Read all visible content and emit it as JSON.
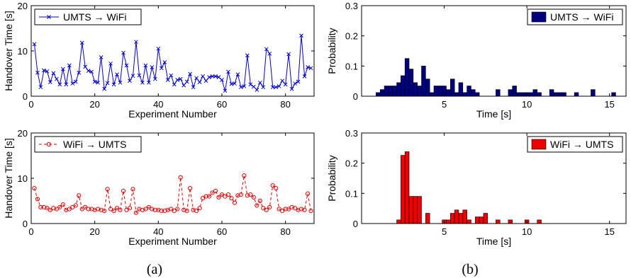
{
  "captions": [
    "(a)",
    "(b)"
  ],
  "chart_data": [
    {
      "type": "line",
      "legend": "UMTS → WiFi",
      "legend_position": "top-left",
      "xlabel": "Experiment Number",
      "ylabel": "Handover Time [s]",
      "xlim": [
        0,
        89
      ],
      "ylim": [
        0,
        20
      ],
      "xticks": [
        "0",
        "20",
        "40",
        "60",
        "80"
      ],
      "yticks": [
        "0",
        "10",
        "20"
      ],
      "marker": "x",
      "color": "#0000cc",
      "grid": false,
      "x": [
        1,
        2,
        3,
        4,
        5,
        6,
        7,
        8,
        9,
        10,
        11,
        12,
        13,
        14,
        15,
        16,
        17,
        18,
        19,
        20,
        21,
        22,
        23,
        24,
        25,
        26,
        27,
        28,
        29,
        30,
        31,
        32,
        33,
        34,
        35,
        36,
        37,
        38,
        39,
        40,
        41,
        42,
        43,
        44,
        45,
        46,
        47,
        48,
        49,
        50,
        51,
        52,
        53,
        54,
        55,
        56,
        57,
        58,
        59,
        60,
        61,
        62,
        63,
        64,
        65,
        66,
        67,
        68,
        69,
        70,
        71,
        72,
        73,
        74,
        75,
        76,
        77,
        78,
        79,
        80,
        81,
        82,
        83,
        84,
        85,
        86,
        87,
        88
      ],
      "y": [
        11.5,
        5.2,
        2.0,
        5.7,
        5.5,
        3.1,
        5.1,
        3.8,
        2.6,
        6.0,
        2.6,
        6.8,
        2.8,
        3.2,
        5.2,
        11.8,
        6.5,
        5.6,
        5.4,
        3.2,
        3.0,
        8.6,
        1.6,
        2.9,
        7.2,
        2.6,
        4.8,
        3.0,
        9.6,
        6.8,
        3.4,
        4.5,
        12.0,
        4.6,
        3.0,
        6.8,
        3.0,
        6.4,
        3.8,
        10.5,
        6.2,
        7.5,
        3.6,
        4.6,
        2.6,
        3.6,
        3.8,
        2.4,
        3.2,
        4.9,
        2.0,
        4.0,
        3.1,
        4.4,
        3.4,
        4.2,
        4.4,
        4.4,
        4.2,
        3.6,
        1.2,
        5.4,
        2.7,
        2.8,
        4.8,
        2.0,
        2.2,
        9.0,
        2.6,
        2.1,
        1.4,
        3.0,
        2.0,
        10.4,
        9.4,
        2.0,
        2.0,
        2.2,
        3.4,
        2.6,
        9.3,
        1.6,
        2.8,
        3.2,
        13.4,
        4.4,
        6.4,
        6.2
      ]
    },
    {
      "type": "bar",
      "legend": "UMTS → WiFi",
      "legend_position": "top-right",
      "xlabel": "Time [s]",
      "ylabel": "Probability",
      "xlim": [
        0,
        16
      ],
      "ylim": [
        0,
        0.3
      ],
      "xticks": [
        "5",
        "10",
        "15"
      ],
      "yticks": [
        "0",
        "0.1",
        "0.2",
        "0.3"
      ],
      "color": "#00007f",
      "grid": false,
      "x": [
        1.0,
        1.25,
        1.5,
        1.75,
        2.0,
        2.25,
        2.5,
        2.75,
        3.0,
        3.25,
        3.5,
        3.75,
        4.0,
        4.25,
        4.5,
        4.75,
        5.0,
        5.25,
        5.5,
        5.75,
        6.0,
        6.25,
        6.5,
        6.75,
        7.0,
        8.25,
        9.0,
        9.25,
        9.5,
        9.75,
        10.0,
        10.25,
        10.5,
        10.75,
        11.5,
        11.75,
        12.0,
        12.25,
        13.0,
        14.0,
        15.25
      ],
      "values": [
        0.012,
        0.022,
        0.034,
        0.034,
        0.034,
        0.045,
        0.068,
        0.125,
        0.09,
        0.045,
        0.034,
        0.1,
        0.057,
        0.012,
        0.034,
        0.034,
        0.034,
        0.022,
        0.057,
        0.012,
        0.045,
        0.012,
        0.034,
        0.022,
        0.012,
        0.022,
        0.022,
        0.034,
        0.012,
        0.012,
        0.012,
        0.012,
        0.022,
        0.012,
        0.022,
        0.012,
        0.012,
        0.012,
        0.012,
        0.022,
        0.012
      ],
      "bar_width": 0.25
    },
    {
      "type": "line",
      "legend": "WiFi → UMTS",
      "legend_position": "top-left",
      "xlabel": "Experiment Number",
      "ylabel": "Handover Time [s]",
      "xlim": [
        0,
        89
      ],
      "ylim": [
        0,
        20
      ],
      "xticks": [
        "0",
        "20",
        "40",
        "60",
        "80"
      ],
      "yticks": [
        "0",
        "10",
        "20"
      ],
      "marker": "o",
      "line_style": "dashed",
      "color": "#dd0000",
      "grid": false,
      "x": [
        1,
        2,
        3,
        4,
        5,
        6,
        7,
        8,
        9,
        10,
        11,
        12,
        13,
        14,
        15,
        16,
        17,
        18,
        19,
        20,
        21,
        22,
        23,
        24,
        25,
        26,
        27,
        28,
        29,
        30,
        31,
        32,
        33,
        34,
        35,
        36,
        37,
        38,
        39,
        40,
        41,
        42,
        43,
        44,
        45,
        46,
        47,
        48,
        49,
        50,
        51,
        52,
        53,
        54,
        55,
        56,
        57,
        58,
        59,
        60,
        61,
        62,
        63,
        64,
        65,
        66,
        67,
        68,
        69,
        70,
        71,
        72,
        73,
        74,
        75,
        76,
        77,
        78,
        79,
        80,
        81,
        82,
        83,
        84,
        85,
        86,
        87,
        88
      ],
      "y": [
        7.8,
        5.4,
        3.6,
        3.6,
        3.4,
        3.0,
        3.4,
        3.2,
        3.6,
        4.2,
        3.0,
        3.2,
        3.6,
        4.0,
        6.2,
        3.2,
        3.6,
        3.2,
        3.2,
        3.0,
        3.2,
        3.0,
        2.8,
        7.6,
        3.2,
        2.8,
        3.4,
        3.0,
        7.2,
        3.0,
        3.4,
        7.6,
        2.4,
        3.2,
        3.0,
        3.2,
        3.6,
        3.2,
        3.0,
        3.0,
        2.8,
        2.8,
        3.0,
        3.2,
        2.8,
        3.2,
        10.2,
        3.0,
        2.8,
        7.8,
        3.0,
        2.8,
        3.4,
        5.6,
        6.0,
        6.0,
        6.8,
        7.2,
        5.8,
        6.4,
        6.0,
        6.4,
        5.6,
        4.6,
        6.2,
        6.4,
        10.6,
        6.2,
        6.4,
        5.8,
        4.0,
        5.0,
        3.4,
        3.0,
        3.6,
        8.4,
        7.8,
        3.2,
        2.8,
        3.2,
        3.2,
        3.6,
        3.4,
        3.0,
        3.2,
        3.0,
        6.6,
        2.8
      ]
    },
    {
      "type": "bar",
      "legend": "WiFi → UMTS",
      "legend_position": "top-right",
      "xlabel": "Time [s]",
      "ylabel": "Probability",
      "xlim": [
        0,
        16
      ],
      "ylim": [
        0,
        0.3
      ],
      "xticks": [
        "5",
        "10",
        "15"
      ],
      "yticks": [
        "0",
        "0.1",
        "0.2",
        "0.3"
      ],
      "color": "#ee0000",
      "grid": false,
      "x": [
        2.25,
        2.5,
        2.75,
        3.0,
        3.25,
        3.5,
        4.0,
        5.0,
        5.25,
        5.5,
        5.75,
        6.0,
        6.25,
        6.5,
        7.0,
        7.25,
        7.5,
        8.25,
        9.0,
        10.0,
        10.75
      ],
      "values": [
        0.012,
        0.226,
        0.238,
        0.09,
        0.09,
        0.09,
        0.034,
        0.012,
        0.012,
        0.034,
        0.045,
        0.034,
        0.045,
        0.012,
        0.022,
        0.022,
        0.034,
        0.012,
        0.012,
        0.012,
        0.012
      ],
      "bar_width": 0.25
    }
  ]
}
